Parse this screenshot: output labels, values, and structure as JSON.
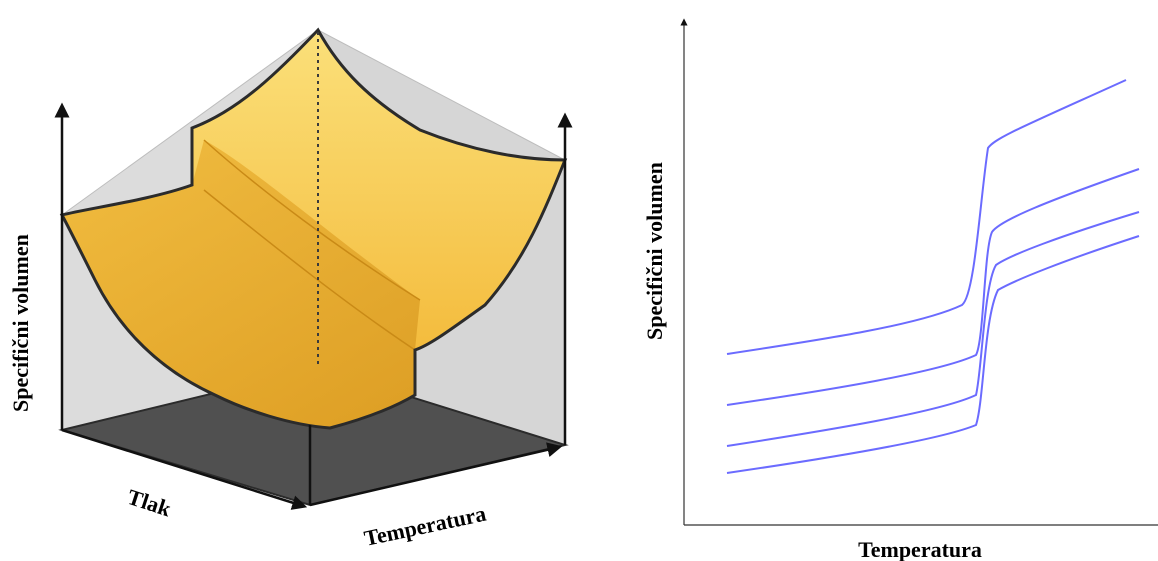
{
  "left_figure": {
    "vertical_label": "Specifični volumen",
    "pressure_label": "Tlak",
    "temperature_label": "Temperatura",
    "colors": {
      "surface": "#f5c23f",
      "surface_shadow": "#e0a528",
      "floor": "#555555",
      "walls": "#dcdcdc",
      "outline": "#2b2b2b"
    }
  },
  "right_figure": {
    "ylabel": "Specifični volumen",
    "xlabel": "Temperatura",
    "line_color": "#6b6bff",
    "series_count": 4
  }
}
